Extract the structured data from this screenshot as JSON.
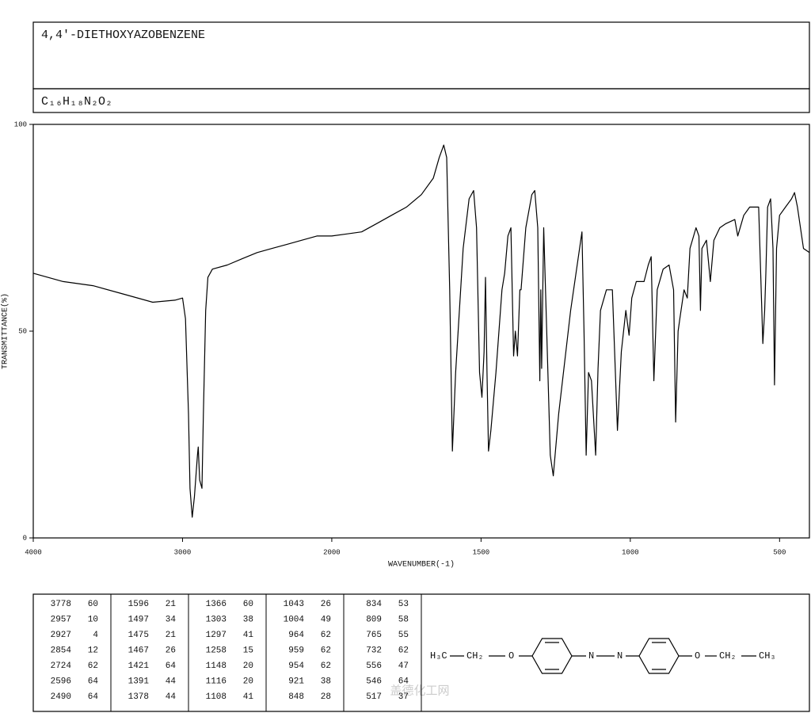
{
  "header": {
    "title": "4,4'-DIETHOXYAZOBENZENE",
    "formula": "C₁₆H₁₈N₂O₂"
  },
  "chart_data": {
    "type": "line",
    "x_label": "WAVENUMBER(-1)",
    "y_label": "TRANSMITTANCE(%)",
    "xlim": [
      4000,
      400
    ],
    "ylim": [
      0,
      100
    ],
    "x_scale_change": {
      "at": 2000,
      "factor": 2
    },
    "xticks": [
      4000,
      3000,
      2000,
      1500,
      1000,
      500
    ],
    "yticks": [
      0,
      50,
      100
    ],
    "color": "#000000",
    "x": [
      4000,
      3800,
      3600,
      3400,
      3200,
      3050,
      3000,
      2980,
      2960,
      2950,
      2935,
      2920,
      2900,
      2895,
      2885,
      2870,
      2860,
      2845,
      2830,
      2800,
      2700,
      2600,
      2500,
      2400,
      2300,
      2200,
      2100,
      2000,
      1950,
      1900,
      1850,
      1800,
      1750,
      1700,
      1660,
      1640,
      1625,
      1615,
      1605,
      1596,
      1585,
      1560,
      1540,
      1525,
      1515,
      1505,
      1497,
      1490,
      1485,
      1480,
      1475,
      1467,
      1450,
      1430,
      1421,
      1410,
      1400,
      1391,
      1385,
      1378,
      1370,
      1366,
      1350,
      1330,
      1320,
      1310,
      1303,
      1300,
      1297,
      1290,
      1280,
      1268,
      1258,
      1240,
      1200,
      1170,
      1162,
      1155,
      1148,
      1140,
      1130,
      1116,
      1108,
      1100,
      1080,
      1060,
      1050,
      1043,
      1030,
      1015,
      1004,
      995,
      980,
      964,
      959,
      954,
      940,
      930,
      921,
      910,
      890,
      870,
      855,
      848,
      840,
      834,
      820,
      809,
      800,
      780,
      770,
      765,
      760,
      745,
      732,
      720,
      700,
      680,
      650,
      640,
      620,
      600,
      570,
      556,
      550,
      546,
      540,
      530,
      522,
      517,
      510,
      500,
      480,
      460,
      450,
      440,
      420,
      400
    ],
    "values": [
      64,
      62,
      61,
      59,
      57,
      57.5,
      58,
      53,
      30,
      12,
      5,
      10,
      20,
      22,
      14,
      12,
      30,
      55,
      63,
      65,
      66,
      67.5,
      69,
      70,
      71,
      72,
      73,
      73,
      73.5,
      74,
      76,
      78,
      80,
      83,
      87,
      92,
      95,
      92,
      60,
      21,
      40,
      70,
      82,
      84,
      75,
      40,
      34,
      45,
      63,
      40,
      21,
      26,
      40,
      60,
      64,
      73,
      75,
      44,
      50,
      44,
      60,
      60,
      75,
      83,
      84,
      75,
      38,
      60,
      41,
      75,
      50,
      20,
      15,
      30,
      55,
      70,
      74,
      50,
      20,
      40,
      38,
      20,
      41,
      55,
      60,
      60,
      40,
      26,
      45,
      55,
      49,
      58,
      62,
      62,
      62,
      62,
      66,
      68,
      38,
      60,
      65,
      66,
      60,
      28,
      50,
      53,
      60,
      58,
      70,
      75,
      73,
      55,
      70,
      72,
      62,
      72,
      75,
      76,
      77,
      73,
      78,
      80,
      80,
      47,
      55,
      64,
      80,
      82,
      70,
      37,
      70,
      78,
      80,
      82,
      83.5,
      80,
      70,
      69
    ]
  },
  "peak_table": {
    "columns": [
      [
        [
          3778,
          60
        ],
        [
          2957,
          10
        ],
        [
          2927,
          4
        ],
        [
          2854,
          12
        ],
        [
          2724,
          62
        ],
        [
          2596,
          64
        ],
        [
          2490,
          64
        ]
      ],
      [
        [
          1596,
          21
        ],
        [
          1497,
          34
        ],
        [
          1475,
          21
        ],
        [
          1467,
          26
        ],
        [
          1421,
          64
        ],
        [
          1391,
          44
        ],
        [
          1378,
          44
        ]
      ],
      [
        [
          1366,
          60
        ],
        [
          1303,
          38
        ],
        [
          1297,
          41
        ],
        [
          1258,
          15
        ],
        [
          1148,
          20
        ],
        [
          1116,
          20
        ],
        [
          1108,
          41
        ]
      ],
      [
        [
          1043,
          26
        ],
        [
          1004,
          49
        ],
        [
          964,
          62
        ],
        [
          959,
          62
        ],
        [
          954,
          62
        ],
        [
          921,
          38
        ],
        [
          848,
          28
        ]
      ],
      [
        [
          834,
          53
        ],
        [
          809,
          58
        ],
        [
          765,
          55
        ],
        [
          732,
          62
        ],
        [
          556,
          47
        ],
        [
          546,
          64
        ],
        [
          517,
          37
        ]
      ]
    ]
  },
  "structure": {
    "labels": [
      "H₃C",
      "CH₂",
      "O",
      "N",
      "N",
      "O",
      "CH₂",
      "CH₃"
    ]
  },
  "watermark": "盖德化工网"
}
